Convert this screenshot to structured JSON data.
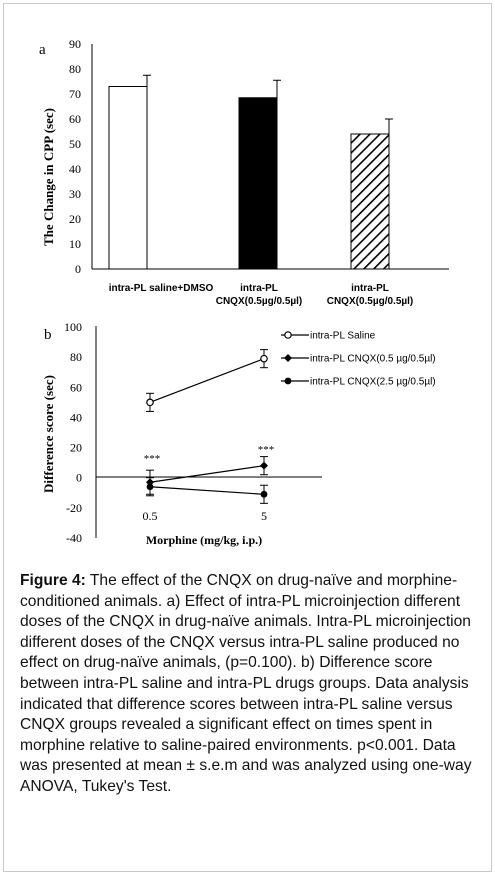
{
  "panel_a_letter": "a",
  "panel_b_letter": "b",
  "caption": {
    "label": "Figure 4:",
    "text": " The effect of the CNQX on drug-naïve and morphine-conditioned animals. a) Effect of intra-PL microinjection different doses of the CNQX in drug-naïve animals. Intra-PL microinjection different doses of the CNQX versus intra-PL saline produced no effect on drug-naïve animals, (p=0.100). b) Difference score between intra-PL saline and intra-PL drugs groups. Data analysis indicated that difference scores between intra-PL saline versus CNQX groups revealed a significant effect on times spent in morphine relative to saline-paired environments. p<0.001. Data was presented at mean ± s.e.m and was analyzed using one-way ANOVA, Tukey's Test."
  },
  "chart_data": [
    {
      "type": "bar",
      "ylabel": "The Change in CPP (sec)",
      "ylim": [
        0,
        90
      ],
      "yticks": [
        0,
        10,
        20,
        30,
        40,
        50,
        60,
        70,
        80,
        90
      ],
      "categories": [
        [
          "intra-PL saline+DMSO"
        ],
        [
          "intra-PL",
          "CNQX(0.5µg/0.5µl)"
        ],
        [
          "intra-PL",
          "CNQX(0.5µg/0.5µl)"
        ]
      ],
      "values": [
        73,
        68.5,
        54
      ],
      "errors": [
        4.5,
        7,
        6
      ],
      "fills": [
        "white",
        "black",
        "hatched"
      ],
      "colors": {
        "bar_stroke": "#000000",
        "hatch": "#000000"
      }
    },
    {
      "type": "line",
      "ylabel": "Difference score (sec)",
      "xlabel": "Morphine (mg/kg, i.p.)",
      "x": [
        "0.5",
        "5"
      ],
      "ylim": [
        -40,
        100
      ],
      "yticks": [
        -40,
        -20,
        0,
        20,
        40,
        60,
        80,
        100
      ],
      "series": [
        {
          "name": "intra-PL Saline",
          "values": [
            50,
            79
          ],
          "errors": [
            6,
            6
          ],
          "marker": "open-circle"
        },
        {
          "name": "intra-PL CNQX(0.5 µg/0.5µl)",
          "values": [
            -3,
            8
          ],
          "errors": [
            8,
            6
          ],
          "marker": "diamond"
        },
        {
          "name": "intra-PL CNQX(2.5 µg/0.5µl)",
          "values": [
            -6,
            -11
          ],
          "errors": [
            6,
            6
          ],
          "marker": "filled-circle"
        }
      ],
      "annotations": [
        "***",
        "***"
      ],
      "legend_position": "top-right"
    }
  ]
}
